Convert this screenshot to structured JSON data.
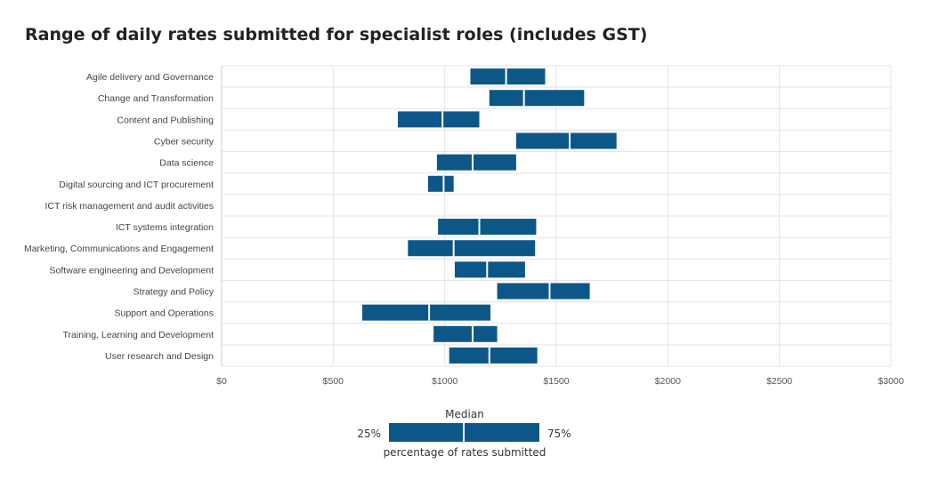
{
  "chart_data": {
    "type": "bar",
    "subtype": "range",
    "title": "Range of daily rates submitted for specialist roles (includes GST)",
    "xlabel": "",
    "ylabel": "",
    "xlim": [
      0,
      3000
    ],
    "xticks": [
      0,
      500,
      1000,
      1500,
      2000,
      2500,
      3000
    ],
    "tick_labels": [
      "$0",
      "$500",
      "$1000",
      "$1500",
      "$2000",
      "$2500",
      "$3000"
    ],
    "grid": true,
    "bar_color": "#0d5788",
    "categories": [
      "Agile delivery and Governance",
      "Change and Transformation",
      "Content and Publishing",
      "Cyber security",
      "Data science",
      "Digital sourcing and ICT procurement",
      "ICT risk management and audit activities",
      "ICT systems integration",
      "Marketing, Communications and Engagement",
      "Software engineering and Development",
      "Strategy and Policy",
      "Support and Operations",
      "Training, Learning and Development",
      "User research and Design"
    ],
    "series": [
      {
        "stat": "p25",
        "values": [
          1115,
          1200,
          790,
          1320,
          965,
          925,
          null,
          970,
          835,
          1045,
          1235,
          630,
          950,
          1020
        ]
      },
      {
        "stat": "median",
        "values": [
          1275,
          1355,
          990,
          1560,
          1125,
          995,
          null,
          1155,
          1040,
          1190,
          1470,
          930,
          1125,
          1200
        ]
      },
      {
        "stat": "p75",
        "values": [
          1450,
          1625,
          1155,
          1770,
          1320,
          1040,
          null,
          1410,
          1405,
          1360,
          1650,
          1205,
          1235,
          1415
        ]
      }
    ],
    "legend": {
      "position": "bottom",
      "median_label": "Median",
      "low_label": "25%",
      "high_label": "75%",
      "caption": "percentage of rates submitted"
    }
  }
}
